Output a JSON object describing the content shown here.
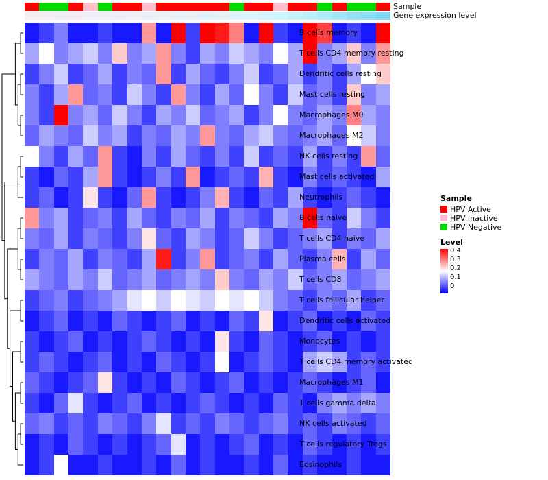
{
  "annotations": {
    "sample": {
      "label": "Sample",
      "values": [
        "HPV Active",
        "HPV Negative",
        "HPV Negative",
        "HPV Active",
        "HPV Inactive",
        "HPV Negative",
        "HPV Active",
        "HPV Active",
        "HPV Inactive",
        "HPV Active",
        "HPV Active",
        "HPV Active",
        "HPV Active",
        "HPV Active",
        "HPV Negative",
        "HPV Active",
        "HPV Active",
        "HPV Inactive",
        "HPV Active",
        "HPV Active",
        "HPV Negative",
        "HPV Active",
        "HPV Negative",
        "HPV Negative",
        "HPV Active"
      ],
      "colors": {
        "HPV Active": "#ff0000",
        "HPV Inactive": "#ffc0cb",
        "HPV Negative": "#00d900"
      }
    },
    "expression": {
      "label": "Gene expression level",
      "colors": [
        "#f6eef0",
        "#f3eef5",
        "#efeef8",
        "#f4ecf2",
        "#eeeffa",
        "#f2eef6",
        "#eceffa",
        "#f0eef8",
        "#e9f0fa",
        "#eef0f8",
        "#e6f1fa",
        "#ebf0f8",
        "#e2f2fa",
        "#e8f1f8",
        "#ddf2fa",
        "#d8f3fa",
        "#d2f4fb",
        "#cdf5fb",
        "#c4f0f8",
        "#baeef8",
        "#aee9f6",
        "#a2e5f5",
        "#96e0f3",
        "#8adcf2",
        "#7ed7f0"
      ]
    }
  },
  "legend": {
    "sample_title": "Sample",
    "sample_items": [
      {
        "label": "HPV Active",
        "color": "#ff0000"
      },
      {
        "label": "HPV Inactive",
        "color": "#ffc0cb"
      },
      {
        "label": "HPV Negative",
        "color": "#00d900"
      }
    ],
    "level_title": "Level",
    "level_ticks": [
      "0.4",
      "0.3",
      "0.2",
      "0.1",
      "0"
    ]
  },
  "chart_data": {
    "type": "heatmap",
    "title": "",
    "rows": [
      "B cells memory",
      "T cells CD4 memory resting",
      "Dendritic cells resting",
      "Mast cells resting",
      "Macrophages M0",
      "Macrophages M2",
      "NK cells resting",
      "Mast cells activated",
      "Neutrophils",
      "B cells naive",
      "T cells CD4 naive",
      "Plasma cells",
      "T cells CD8",
      "T cells follicular helper",
      "Dendritic cells activated",
      "Monocytes",
      "T cells CD4 memory activated",
      "Macrophages M1",
      "T cells gamma delta",
      "NK cells activated",
      "T cells regulatory Tregs",
      "Eosinophils"
    ],
    "n_columns": 25,
    "column_labels_shown": false,
    "column_annotation_tracks": [
      "Sample",
      "Gene expression level"
    ],
    "level_scale": {
      "min": 0,
      "max": 0.4,
      "midpoint": 0.2,
      "colormap": "blue-white-red"
    },
    "values": [
      [
        0.02,
        0.05,
        0.1,
        0.02,
        0.02,
        0.05,
        0.02,
        0.02,
        0.28,
        0.02,
        0.4,
        0.05,
        0.4,
        0.38,
        0.3,
        0.02,
        0.4,
        0.05,
        0.02,
        0.4,
        0.35,
        0.02,
        0.05,
        0.02,
        0.4
      ],
      [
        0.13,
        0.2,
        0.1,
        0.13,
        0.16,
        0.1,
        0.24,
        0.1,
        0.13,
        0.28,
        0.1,
        0.05,
        0.13,
        0.1,
        0.16,
        0.13,
        0.1,
        0.2,
        0.13,
        0.4,
        0.1,
        0.13,
        0.24,
        0.1,
        0.28
      ],
      [
        0.05,
        0.1,
        0.16,
        0.05,
        0.08,
        0.13,
        0.05,
        0.1,
        0.08,
        0.28,
        0.05,
        0.13,
        0.08,
        0.05,
        0.1,
        0.16,
        0.05,
        0.08,
        0.13,
        0.05,
        0.1,
        0.05,
        0.13,
        0.2,
        0.24
      ],
      [
        0.1,
        0.05,
        0.13,
        0.28,
        0.08,
        0.1,
        0.05,
        0.16,
        0.1,
        0.05,
        0.28,
        0.1,
        0.05,
        0.13,
        0.08,
        0.2,
        0.1,
        0.05,
        0.16,
        0.08,
        0.1,
        0.05,
        0.24,
        0.1,
        0.13
      ],
      [
        0.1,
        0.05,
        0.4,
        0.1,
        0.13,
        0.08,
        0.16,
        0.1,
        0.05,
        0.13,
        0.1,
        0.16,
        0.08,
        0.1,
        0.13,
        0.05,
        0.1,
        0.2,
        0.1,
        0.08,
        0.13,
        0.1,
        0.3,
        0.13,
        0.1
      ],
      [
        0.08,
        0.13,
        0.1,
        0.08,
        0.16,
        0.1,
        0.13,
        0.05,
        0.1,
        0.08,
        0.13,
        0.1,
        0.28,
        0.1,
        0.08,
        0.13,
        0.16,
        0.1,
        0.08,
        0.1,
        0.13,
        0.08,
        0.2,
        0.16,
        0.1
      ],
      [
        0.2,
        0.1,
        0.05,
        0.13,
        0.08,
        0.28,
        0.05,
        0.02,
        0.1,
        0.05,
        0.13,
        0.08,
        0.05,
        0.1,
        0.05,
        0.16,
        0.05,
        0.08,
        0.05,
        0.13,
        0.05,
        0.1,
        0.05,
        0.28,
        0.08
      ],
      [
        0.05,
        0.02,
        0.08,
        0.05,
        0.13,
        0.28,
        0.05,
        0.02,
        0.05,
        0.1,
        0.05,
        0.28,
        0.02,
        0.05,
        0.08,
        0.05,
        0.26,
        0.05,
        0.02,
        0.1,
        0.05,
        0.08,
        0.05,
        0.02,
        0.13
      ],
      [
        0.05,
        0.08,
        0.02,
        0.05,
        0.22,
        0.05,
        0.02,
        0.08,
        0.28,
        0.05,
        0.02,
        0.05,
        0.1,
        0.26,
        0.05,
        0.02,
        0.08,
        0.05,
        0.13,
        0.05,
        0.02,
        0.05,
        0.08,
        0.05,
        0.02
      ],
      [
        0.28,
        0.1,
        0.13,
        0.05,
        0.08,
        0.1,
        0.05,
        0.13,
        0.08,
        0.05,
        0.1,
        0.08,
        0.13,
        0.05,
        0.1,
        0.08,
        0.05,
        0.13,
        0.1,
        0.4,
        0.08,
        0.05,
        0.16,
        0.1,
        0.05
      ],
      [
        0.1,
        0.08,
        0.13,
        0.05,
        0.1,
        0.08,
        0.05,
        0.1,
        0.22,
        0.08,
        0.05,
        0.13,
        0.1,
        0.05,
        0.08,
        0.16,
        0.1,
        0.05,
        0.08,
        0.1,
        0.13,
        0.05,
        0.1,
        0.08,
        0.13
      ],
      [
        0.05,
        0.1,
        0.08,
        0.13,
        0.05,
        0.1,
        0.08,
        0.05,
        0.13,
        0.38,
        0.05,
        0.1,
        0.28,
        0.05,
        0.08,
        0.1,
        0.05,
        0.13,
        0.08,
        0.05,
        0.1,
        0.26,
        0.05,
        0.13,
        0.08
      ],
      [
        0.13,
        0.1,
        0.08,
        0.13,
        0.1,
        0.16,
        0.08,
        0.1,
        0.13,
        0.08,
        0.1,
        0.13,
        0.1,
        0.24,
        0.1,
        0.08,
        0.13,
        0.1,
        0.16,
        0.08,
        0.1,
        0.13,
        0.08,
        0.1,
        0.13
      ],
      [
        0.05,
        0.08,
        0.1,
        0.05,
        0.08,
        0.1,
        0.13,
        0.18,
        0.2,
        0.16,
        0.2,
        0.18,
        0.16,
        0.2,
        0.18,
        0.2,
        0.16,
        0.1,
        0.08,
        0.05,
        0.1,
        0.08,
        0.13,
        0.05,
        0.08
      ],
      [
        0.02,
        0.05,
        0.08,
        0.02,
        0.05,
        0.02,
        0.08,
        0.05,
        0.02,
        0.05,
        0.08,
        0.02,
        0.05,
        0.02,
        0.08,
        0.05,
        0.22,
        0.02,
        0.05,
        0.08,
        0.02,
        0.05,
        0.02,
        0.08,
        0.05
      ],
      [
        0.05,
        0.02,
        0.05,
        0.08,
        0.02,
        0.05,
        0.02,
        0.05,
        0.08,
        0.05,
        0.02,
        0.05,
        0.02,
        0.22,
        0.05,
        0.02,
        0.08,
        0.05,
        0.02,
        0.05,
        0.08,
        0.02,
        0.05,
        0.02,
        0.05
      ],
      [
        0.05,
        0.08,
        0.05,
        0.02,
        0.05,
        0.08,
        0.02,
        0.05,
        0.02,
        0.08,
        0.05,
        0.02,
        0.05,
        0.2,
        0.02,
        0.05,
        0.08,
        0.05,
        0.02,
        0.13,
        0.16,
        0.13,
        0.05,
        0.08,
        0.05
      ],
      [
        0.08,
        0.05,
        0.02,
        0.05,
        0.08,
        0.22,
        0.05,
        0.02,
        0.05,
        0.02,
        0.08,
        0.05,
        0.02,
        0.05,
        0.08,
        0.02,
        0.05,
        0.02,
        0.05,
        0.08,
        0.05,
        0.02,
        0.05,
        0.08,
        0.02
      ],
      [
        0.05,
        0.02,
        0.08,
        0.18,
        0.05,
        0.02,
        0.05,
        0.08,
        0.02,
        0.05,
        0.02,
        0.05,
        0.08,
        0.05,
        0.02,
        0.05,
        0.02,
        0.08,
        0.05,
        0.02,
        0.1,
        0.13,
        0.1,
        0.13,
        0.1
      ],
      [
        0.08,
        0.1,
        0.05,
        0.08,
        0.05,
        0.1,
        0.08,
        0.05,
        0.1,
        0.18,
        0.05,
        0.08,
        0.05,
        0.1,
        0.08,
        0.05,
        0.08,
        0.1,
        0.05,
        0.08,
        0.05,
        0.1,
        0.08,
        0.05,
        0.08
      ],
      [
        0.02,
        0.05,
        0.02,
        0.08,
        0.05,
        0.02,
        0.05,
        0.02,
        0.05,
        0.08,
        0.18,
        0.02,
        0.05,
        0.02,
        0.05,
        0.08,
        0.02,
        0.05,
        0.02,
        0.08,
        0.05,
        0.02,
        0.05,
        0.02,
        0.05
      ],
      [
        0.02,
        0.05,
        0.2,
        0.02,
        0.02,
        0.05,
        0.02,
        0.02,
        0.05,
        0.02,
        0.08,
        0.02,
        0.05,
        0.02,
        0.02,
        0.05,
        0.02,
        0.08,
        0.02,
        0.05,
        0.02,
        0.02,
        0.05,
        0.02,
        0.02
      ]
    ],
    "row_dendrogram": [
      [
        [
          0,
          1
        ],
        [
          [
            2,
            3
          ],
          [
            4,
            5
          ]
        ]
      ],
      [
        [
          [
            6,
            7
          ],
          8
        ],
        [
          [
            [
              9,
              10
            ],
            [
              11,
              12
            ]
          ],
          [
            [
              13,
              14
            ],
            [
              [
                15,
                16
              ],
              [
                [
                  17,
                  18
                ],
                [
                  [
                    19,
                    20
                  ],
                  21
                ]
              ]
            ]
          ]
        ]
      ]
    ]
  }
}
